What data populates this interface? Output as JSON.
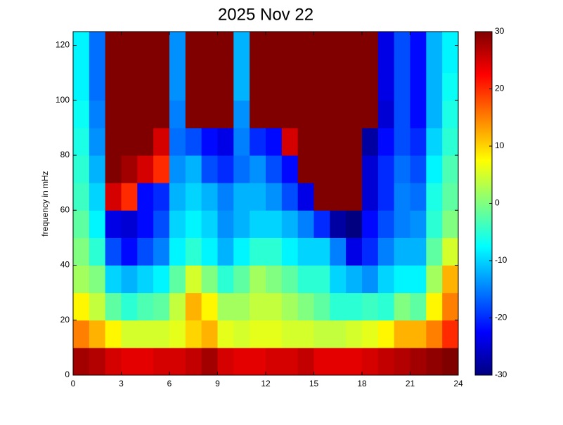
{
  "chart_data": {
    "type": "heatmap",
    "title": "2025 Nov 22",
    "y_label": "frequency in mHz",
    "x_bins": [
      0,
      1,
      2,
      3,
      4,
      5,
      6,
      7,
      8,
      9,
      10,
      11,
      12,
      13,
      14,
      15,
      16,
      17,
      18,
      19,
      20,
      21,
      22,
      23,
      24
    ],
    "y_bins": [
      0,
      10,
      20,
      30,
      40,
      50,
      60,
      70,
      80,
      90,
      100,
      110,
      120,
      125
    ],
    "z": [
      [
        28,
        27,
        25,
        24,
        24,
        25,
        25,
        26,
        28,
        25,
        24,
        24,
        25,
        25,
        26,
        24,
        24,
        24,
        25,
        26,
        27,
        28,
        29,
        30
      ],
      [
        15,
        12,
        8,
        5,
        5,
        5,
        6,
        10,
        12,
        6,
        5,
        6,
        6,
        5,
        5,
        4,
        4,
        5,
        6,
        8,
        12,
        12,
        15,
        20
      ],
      [
        8,
        4,
        -2,
        -5,
        -3,
        -2,
        4,
        12,
        8,
        2,
        2,
        4,
        4,
        2,
        0,
        -2,
        -5,
        -5,
        -4,
        -5,
        0,
        -2,
        8,
        15
      ],
      [
        2,
        0,
        -10,
        -12,
        -10,
        -8,
        -2,
        5,
        0,
        -5,
        -2,
        2,
        0,
        -2,
        -5,
        -5,
        -10,
        -12,
        -14,
        -10,
        -8,
        -8,
        2,
        12
      ],
      [
        0,
        -5,
        -18,
        -22,
        -18,
        -15,
        -8,
        -5,
        -8,
        -12,
        -8,
        -5,
        -5,
        -8,
        -10,
        -10,
        -15,
        -24,
        -20,
        -15,
        -12,
        -12,
        -2,
        5
      ],
      [
        -2,
        -8,
        -24,
        -25,
        -22,
        -18,
        -10,
        -8,
        -10,
        -14,
        -12,
        -10,
        -10,
        -12,
        -15,
        -20,
        -28,
        -30,
        -22,
        -18,
        -15,
        -14,
        -5,
        0
      ],
      [
        -4,
        -10,
        25,
        20,
        -22,
        -20,
        -12,
        -10,
        -12,
        -15,
        -12,
        -12,
        -14,
        -18,
        -24,
        30,
        30,
        30,
        -25,
        -20,
        -15,
        -16,
        -6,
        -2
      ],
      [
        -5,
        -12,
        30,
        28,
        25,
        20,
        -14,
        -12,
        -18,
        -20,
        -16,
        -14,
        -18,
        -22,
        30,
        30,
        30,
        30,
        -25,
        -20,
        -16,
        -18,
        -8,
        -3
      ],
      [
        -6,
        -14,
        30,
        30,
        30,
        25,
        -16,
        -18,
        -22,
        -24,
        -15,
        -20,
        -22,
        25,
        30,
        30,
        30,
        30,
        -28,
        -22,
        -18,
        -20,
        -10,
        -5
      ],
      [
        -7,
        -15,
        30,
        30,
        30,
        30,
        -15,
        30,
        30,
        30,
        -14,
        30,
        30,
        30,
        30,
        30,
        30,
        30,
        30,
        -25,
        -18,
        -22,
        -12,
        -6
      ],
      [
        -8,
        -16,
        30,
        30,
        30,
        30,
        -14,
        30,
        30,
        30,
        -12,
        30,
        30,
        30,
        30,
        30,
        30,
        30,
        30,
        -24,
        -18,
        -22,
        -12,
        -7
      ],
      [
        -8,
        -16,
        30,
        30,
        30,
        30,
        -14,
        30,
        30,
        30,
        -12,
        30,
        30,
        30,
        30,
        30,
        30,
        30,
        30,
        -24,
        -18,
        -22,
        -12,
        -8
      ],
      [
        -8,
        -16,
        30,
        30,
        30,
        30,
        -14,
        30,
        30,
        30,
        -12,
        30,
        30,
        30,
        30,
        30,
        30,
        30,
        30,
        -24,
        -18,
        -22,
        -12,
        -8
      ]
    ],
    "xlim": [
      0,
      24
    ],
    "xticks": [
      0,
      3,
      6,
      9,
      12,
      15,
      18,
      21,
      24
    ],
    "ylim": [
      0,
      125
    ],
    "yticks": [
      0,
      20,
      40,
      60,
      80,
      100,
      120
    ],
    "clim": [
      -30,
      30
    ],
    "cticks": [
      -30,
      -20,
      -10,
      0,
      10,
      20,
      30
    ],
    "colormap": "jet"
  }
}
